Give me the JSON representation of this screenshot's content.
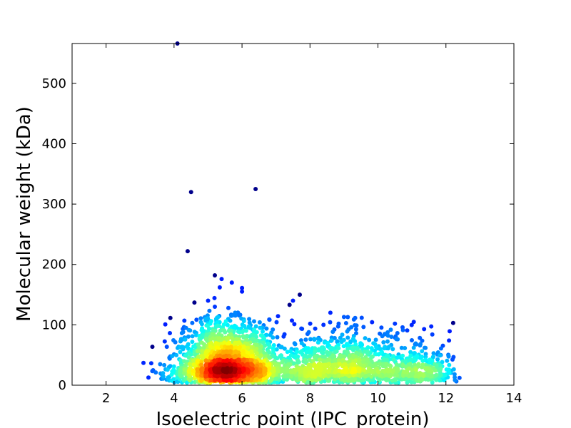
{
  "chart_data": {
    "type": "scatter",
    "title": "",
    "xlabel": "Isoelectric point (IPC_protein)",
    "ylabel": "Molecular weight (kDa)",
    "xlim": [
      1,
      14
    ],
    "ylim": [
      0,
      566
    ],
    "xticks": [
      2,
      4,
      6,
      8,
      10,
      12,
      14
    ],
    "yticks": [
      0,
      100,
      200,
      300,
      400,
      500
    ],
    "xtick_labels": [
      "2",
      "4",
      "6",
      "8",
      "10",
      "12",
      "14"
    ],
    "ytick_labels": [
      "0",
      "100",
      "200",
      "300",
      "400",
      "500"
    ],
    "grid": false,
    "legend": "none",
    "colormap": "jet (point density)",
    "point_color": "#00008b",
    "outliers": [
      {
        "x": 4.1,
        "y": 566
      },
      {
        "x": 4.5,
        "y": 320
      },
      {
        "x": 6.4,
        "y": 325
      },
      {
        "x": 4.4,
        "y": 222
      },
      {
        "x": 5.2,
        "y": 182
      },
      {
        "x": 5.4,
        "y": 176
      },
      {
        "x": 5.7,
        "y": 170
      },
      {
        "x": 6.0,
        "y": 161
      },
      {
        "x": 6.0,
        "y": 155
      },
      {
        "x": 7.7,
        "y": 150
      },
      {
        "x": 7.5,
        "y": 140
      },
      {
        "x": 4.6,
        "y": 137
      },
      {
        "x": 5.0,
        "y": 140
      },
      {
        "x": 5.2,
        "y": 130
      },
      {
        "x": 5.6,
        "y": 128
      },
      {
        "x": 7.4,
        "y": 133
      },
      {
        "x": 3.1,
        "y": 37
      },
      {
        "x": 8.6,
        "y": 120
      },
      {
        "x": 9.0,
        "y": 113
      },
      {
        "x": 10.5,
        "y": 102
      },
      {
        "x": 11.6,
        "y": 84
      },
      {
        "x": 12.4,
        "y": 12
      }
    ],
    "clusters": [
      {
        "cx": 5.5,
        "cy": 28,
        "sx": 0.75,
        "sy": 22,
        "n": 1700
      },
      {
        "cx": 8.8,
        "cy": 24,
        "sx": 1.3,
        "sy": 18,
        "n": 1100
      },
      {
        "cx": 11.2,
        "cy": 18,
        "sx": 0.6,
        "sy": 12,
        "n": 250
      }
    ]
  }
}
